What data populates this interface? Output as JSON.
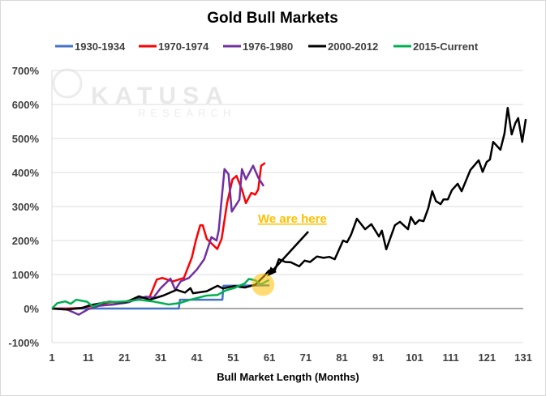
{
  "chart_data": {
    "type": "line",
    "title": "Gold Bull Markets",
    "xlabel": "Bull Market Length (Months)",
    "ylabel": "",
    "xlim": [
      1,
      131
    ],
    "ylim": [
      -100,
      700
    ],
    "x_ticks": [
      1,
      11,
      21,
      31,
      41,
      51,
      61,
      71,
      81,
      91,
      101,
      111,
      121,
      131
    ],
    "y_ticks": [
      -100,
      0,
      100,
      200,
      300,
      400,
      500,
      600,
      700
    ],
    "y_tick_labels": [
      "-100%",
      "0%",
      "100%",
      "200%",
      "300%",
      "400%",
      "500%",
      "600%",
      "700%"
    ],
    "grid": true,
    "legend_position": "top",
    "watermark": "KATUSA RESEARCH",
    "annotation": {
      "text": "We are here",
      "color": "#FFC000",
      "x": 59,
      "y": 75
    },
    "series": [
      {
        "name": "1930-1934",
        "color": "#4472C4",
        "points": [
          [
            1,
            0
          ],
          [
            36,
            0
          ],
          [
            36.3,
            26
          ],
          [
            48,
            26
          ],
          [
            48.3,
            67
          ],
          [
            61,
            68
          ]
        ]
      },
      {
        "name": "1970-1974",
        "color": "#FF0000",
        "points": [
          [
            1,
            0
          ],
          [
            5,
            0
          ],
          [
            9,
            2
          ],
          [
            13,
            10
          ],
          [
            17,
            18
          ],
          [
            21,
            20
          ],
          [
            25,
            30
          ],
          [
            28,
            35
          ],
          [
            29.9,
            85
          ],
          [
            31.4,
            90
          ],
          [
            34.4,
            80
          ],
          [
            37.4,
            90
          ],
          [
            39.6,
            150
          ],
          [
            40.7,
            200
          ],
          [
            41.9,
            245
          ],
          [
            42.6,
            245
          ],
          [
            43.7,
            205
          ],
          [
            46.6,
            175
          ],
          [
            47.8,
            205
          ],
          [
            49.3,
            310
          ],
          [
            50.8,
            380
          ],
          [
            51.9,
            390
          ],
          [
            53.4,
            350
          ],
          [
            54.5,
            310
          ],
          [
            56,
            340
          ],
          [
            57.1,
            335
          ],
          [
            57.9,
            350
          ],
          [
            58.7,
            420
          ],
          [
            59.8,
            428
          ]
        ]
      },
      {
        "name": "1976-1980",
        "color": "#7030A0",
        "points": [
          [
            1,
            0
          ],
          [
            5,
            -2
          ],
          [
            8.4,
            -18
          ],
          [
            11,
            -2
          ],
          [
            14,
            8
          ],
          [
            18,
            12
          ],
          [
            22,
            18
          ],
          [
            25,
            30
          ],
          [
            27,
            35
          ],
          [
            29,
            32
          ],
          [
            31,
            60
          ],
          [
            33.7,
            88
          ],
          [
            35,
            55
          ],
          [
            36.5,
            80
          ],
          [
            38.8,
            90
          ],
          [
            41,
            115
          ],
          [
            43,
            145
          ],
          [
            45,
            210
          ],
          [
            46.4,
            200
          ],
          [
            47,
            230
          ],
          [
            48.6,
            410
          ],
          [
            49.7,
            395
          ],
          [
            50.6,
            285
          ],
          [
            52.7,
            320
          ],
          [
            53.4,
            410
          ],
          [
            54.5,
            380
          ],
          [
            56.5,
            420
          ],
          [
            57.9,
            385
          ],
          [
            59.4,
            360
          ]
        ]
      },
      {
        "name": "2000-2012",
        "color": "#000000",
        "points": [
          [
            1,
            0
          ],
          [
            5,
            -3
          ],
          [
            9.4,
            2
          ],
          [
            11.6,
            10
          ],
          [
            16.8,
            20
          ],
          [
            21.3,
            18
          ],
          [
            25,
            36
          ],
          [
            28,
            26
          ],
          [
            31.7,
            38
          ],
          [
            35.4,
            55
          ],
          [
            37.7,
            47
          ],
          [
            39.2,
            60
          ],
          [
            39.9,
            45
          ],
          [
            43.7,
            51
          ],
          [
            46.7,
            67
          ],
          [
            48.2,
            59
          ],
          [
            51.2,
            66
          ],
          [
            54.2,
            62
          ],
          [
            57.1,
            70
          ],
          [
            59.4,
            94
          ],
          [
            60.9,
            112
          ],
          [
            62.4,
            110
          ],
          [
            63.6,
            145
          ],
          [
            65.4,
            137
          ],
          [
            66.9,
            136
          ],
          [
            69.2,
            124
          ],
          [
            70.7,
            141
          ],
          [
            72.2,
            137
          ],
          [
            74.1,
            153
          ],
          [
            75.9,
            149
          ],
          [
            77.5,
            152
          ],
          [
            79,
            145
          ],
          [
            80,
            169
          ],
          [
            81.3,
            200
          ],
          [
            82.4,
            195
          ],
          [
            83.5,
            217
          ],
          [
            85.1,
            264
          ],
          [
            87.4,
            233
          ],
          [
            89.1,
            248
          ],
          [
            91.2,
            212
          ],
          [
            92,
            229
          ],
          [
            93.2,
            174
          ],
          [
            95.6,
            245
          ],
          [
            97,
            255
          ],
          [
            99.2,
            233
          ],
          [
            100,
            269
          ],
          [
            101.2,
            248
          ],
          [
            102.3,
            260
          ],
          [
            103.5,
            257
          ],
          [
            104.8,
            295
          ],
          [
            105.9,
            345
          ],
          [
            106.9,
            316
          ],
          [
            108.2,
            307
          ],
          [
            109,
            321
          ],
          [
            110.2,
            321
          ],
          [
            111.3,
            348
          ],
          [
            112.9,
            367
          ],
          [
            114,
            345
          ],
          [
            116.4,
            407
          ],
          [
            118.7,
            436
          ],
          [
            119.8,
            402
          ],
          [
            120.9,
            431
          ],
          [
            121.8,
            438
          ],
          [
            122.7,
            490
          ],
          [
            124.7,
            467
          ],
          [
            125.8,
            514
          ],
          [
            126.7,
            590
          ],
          [
            127.8,
            512
          ],
          [
            128.8,
            545
          ],
          [
            129.6,
            560
          ],
          [
            130.7,
            490
          ],
          [
            131.7,
            557
          ]
        ]
      },
      {
        "name": "2015-Current",
        "color": "#00B050",
        "points": [
          [
            1,
            0
          ],
          [
            2.5,
            16
          ],
          [
            4.7,
            21
          ],
          [
            6.2,
            14
          ],
          [
            7.7,
            26
          ],
          [
            10.7,
            20
          ],
          [
            12.2,
            6
          ],
          [
            15.2,
            18
          ],
          [
            21.3,
            21
          ],
          [
            25,
            26
          ],
          [
            28.8,
            21
          ],
          [
            33.2,
            12
          ],
          [
            36.2,
            16
          ],
          [
            39.2,
            26
          ],
          [
            43.7,
            38
          ],
          [
            46.7,
            40
          ],
          [
            48.9,
            53
          ],
          [
            51.2,
            60
          ],
          [
            54.2,
            74
          ],
          [
            55.3,
            87
          ],
          [
            57.1,
            83
          ],
          [
            58.6,
            71
          ],
          [
            60.9,
            84
          ]
        ]
      }
    ]
  }
}
